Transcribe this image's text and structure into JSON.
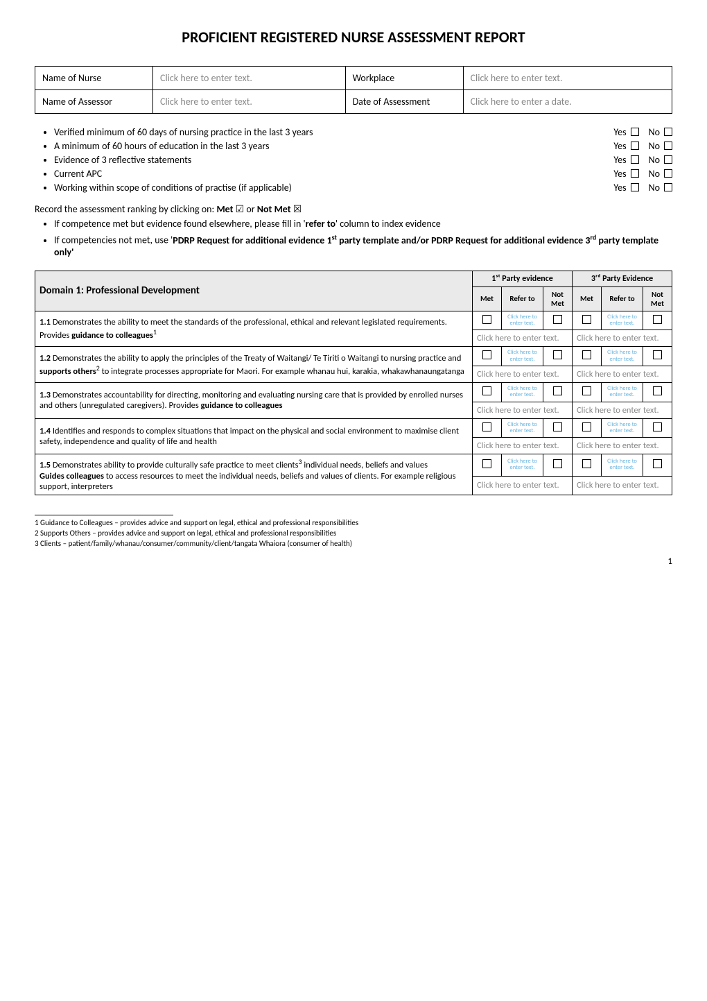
{
  "title": "PROFICIENT REGISTERED NURSE ASSESSMENT REPORT",
  "info_table": {
    "rows": [
      {
        "label": "Name of Nurse",
        "value": "Click here to enter text.",
        "label2": "Workplace",
        "value2": "Click here to enter text."
      },
      {
        "label": "Name of Assessor",
        "value": "Click here to enter text.",
        "label2": "Date of Assessment",
        "value2": "Click here to enter a date."
      }
    ]
  },
  "checklist": {
    "items": [
      "Verified minimum of 60 days of nursing practice in the last 3 years",
      "A minimum of 60 hours of education in the last 3 years",
      "Evidence of 3 reflective statements",
      "Current APC",
      "Working within scope of conditions of practise (if applicable)"
    ],
    "yes": "Yes",
    "no": "No"
  },
  "record_line_pre": "Record the assessment ranking by clicking on: ",
  "record_met": "Met",
  "record_or": " ☑ or ",
  "record_notmet": "Not Met",
  "record_tail": " ☒",
  "notes": [
    {
      "pre": "If competence met but evidence found elsewhere, please fill in '",
      "bold": "refer to",
      "post": "' column to index evidence"
    },
    {
      "pre": "If competencies not met, use '",
      "bold": "PDRP Request for additional evidence 1",
      "sup": "st",
      "bold2": " party template and/or PDRP Request for additional evidence 3",
      "sup2": "rd",
      "bold3": " party template only'"
    }
  ],
  "matrix": {
    "domain_label": "Domain 1: Professional Development",
    "group1": "1ˢᵗ Party evidence",
    "group2": "3ʳᵈ Party Evidence",
    "cols": [
      "Met",
      "Refer to",
      "Not Met",
      "Met",
      "Refer to",
      "Not Met"
    ],
    "refer_placeholder": "Click here to enter text.",
    "clickhere": "Click here to enter text.",
    "rows": [
      {
        "desc_parts": [
          {
            "t": "1.1",
            "b": true
          },
          {
            "t": " Demonstrates the ability to meet the standards of the professional, ethical and relevant legislated requirements. Provides "
          },
          {
            "t": "guidance to colleagues",
            "b": true
          },
          {
            "t": "1",
            "sup": true
          }
        ]
      },
      {
        "desc_parts": [
          {
            "t": "1.2",
            "b": true
          },
          {
            "t": " Demonstrates the ability to apply the principles of the Treaty of Waitangi/ Te Tiriti o Waitangi to nursing practice and "
          },
          {
            "t": "supports others",
            "b": true
          },
          {
            "t": "2",
            "sup": true
          },
          {
            "t": " to integrate processes appropriate for Maori. For example whanau hui, karakia, whakawhanaungatanga"
          }
        ]
      },
      {
        "desc_parts": [
          {
            "t": "1.3",
            "b": true
          },
          {
            "t": " Demonstrates accountability for directing, monitoring and evaluating nursing care that is provided by enrolled nurses and others (unregulated caregivers). Provides "
          },
          {
            "t": "guidance to colleagues",
            "b": true
          }
        ]
      },
      {
        "desc_parts": [
          {
            "t": "1.4",
            "b": true
          },
          {
            "t": " Identifies and responds to complex situations that impact on the physical and social environment to maximise client safety, independence and quality of life and health"
          }
        ]
      },
      {
        "desc_parts": [
          {
            "t": "1.5",
            "b": true
          },
          {
            "t": " Demonstrates ability to provide culturally safe practice to meet clients"
          },
          {
            "t": "3",
            "sup": true
          },
          {
            "t": " individual needs, beliefs and values"
          },
          {
            "br": true
          },
          {
            "t": "Guides colleagues",
            "b": true
          },
          {
            "t": " to access resources to meet the individual needs, beliefs and values of clients. For example religious support, interpreters"
          }
        ]
      }
    ]
  },
  "footnotes": [
    "1  Guidance to Colleagues – provides advice and support on legal, ethical and professional responsibilities",
    "2  Supports Others – provides advice and support on legal, ethical and professional responsibilities",
    "3  Clients – patient/family/whanau/consumer/community/client/tangata Whaiora (consumer of health)"
  ],
  "pagenum": "1",
  "colors": {
    "header_bg": "#eaeaea",
    "placeholder": "#888888",
    "refer_link": "#6bb6e0",
    "border": "#000000"
  }
}
